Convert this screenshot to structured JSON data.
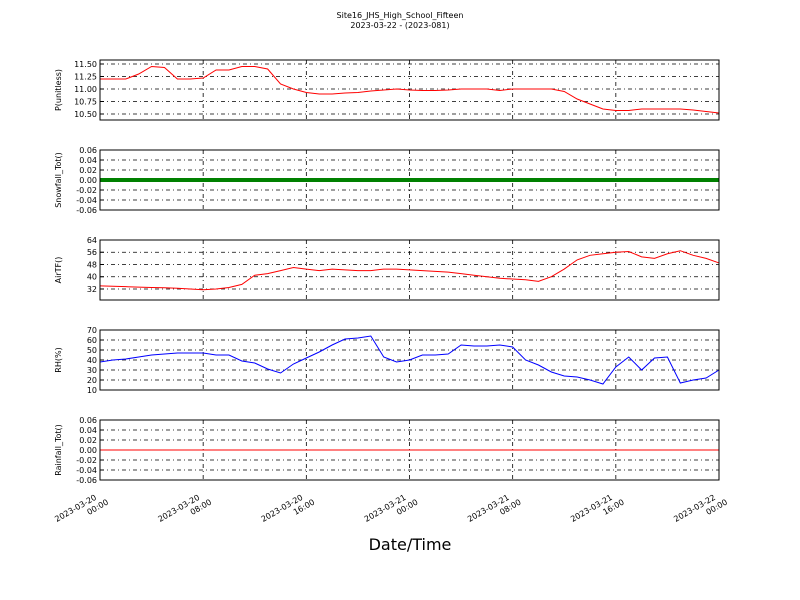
{
  "chart_data": {
    "title": "Site16_JHS_High_School_Fifteen",
    "subtitle": "2023-03-22 - (2023-081)",
    "xlabel": "Date/Time",
    "x": [
      "2023-03-20 00:00",
      "2023-03-20 01:00",
      "2023-03-20 02:00",
      "2023-03-20 03:00",
      "2023-03-20 04:00",
      "2023-03-20 05:00",
      "2023-03-20 06:00",
      "2023-03-20 07:00",
      "2023-03-20 08:00",
      "2023-03-20 09:00",
      "2023-03-20 10:00",
      "2023-03-20 11:00",
      "2023-03-20 12:00",
      "2023-03-20 13:00",
      "2023-03-20 14:00",
      "2023-03-20 15:00",
      "2023-03-20 16:00",
      "2023-03-20 17:00",
      "2023-03-20 18:00",
      "2023-03-20 19:00",
      "2023-03-20 20:00",
      "2023-03-20 21:00",
      "2023-03-20 22:00",
      "2023-03-20 23:00",
      "2023-03-21 00:00",
      "2023-03-21 01:00",
      "2023-03-21 02:00",
      "2023-03-21 03:00",
      "2023-03-21 04:00",
      "2023-03-21 05:00",
      "2023-03-21 06:00",
      "2023-03-21 07:00",
      "2023-03-21 08:00",
      "2023-03-21 09:00",
      "2023-03-21 10:00",
      "2023-03-21 11:00",
      "2023-03-21 12:00",
      "2023-03-21 13:00",
      "2023-03-21 14:00",
      "2023-03-21 15:00",
      "2023-03-21 16:00",
      "2023-03-21 17:00",
      "2023-03-21 18:00",
      "2023-03-21 19:00",
      "2023-03-21 20:00",
      "2023-03-21 21:00",
      "2023-03-21 22:00",
      "2023-03-21 23:00",
      "2023-03-22 00:00"
    ],
    "xlim": [
      "2023-03-20 00:00",
      "2023-03-22 00:00"
    ],
    "xticks": [
      "2023-03-20 00:00",
      "2023-03-20 08:00",
      "2023-03-20 16:00",
      "2023-03-21 00:00",
      "2023-03-21 08:00",
      "2023-03-21 16:00",
      "2023-03-22 00:00"
    ],
    "grid": true,
    "panels": [
      {
        "type": "line",
        "ylabel": "P(unitless)",
        "ylim": [
          10.38,
          11.58
        ],
        "yticks": [
          {
            "value": 10.5,
            "label": "10.50"
          },
          {
            "value": 10.75,
            "label": "10.75"
          },
          {
            "value": 11,
            "label": "11.00"
          },
          {
            "value": 11.25,
            "label": "11.25"
          },
          {
            "value": 11.5,
            "label": "11.50"
          }
        ],
        "series": [
          {
            "color": "#ff0000",
            "width": 1,
            "values": [
              11.2,
              11.2,
              11.2,
              11.3,
              11.45,
              11.43,
              11.2,
              11.2,
              11.22,
              11.38,
              11.38,
              11.45,
              11.45,
              11.4,
              11.1,
              11.0,
              10.93,
              10.9,
              10.9,
              10.92,
              10.93,
              10.96,
              10.98,
              11.0,
              10.98,
              10.97,
              10.97,
              10.98,
              11.0,
              11.0,
              11.0,
              10.97,
              11.0,
              11.0,
              11.0,
              11.0,
              10.95,
              10.8,
              10.7,
              10.6,
              10.57,
              10.57,
              10.6,
              10.6,
              10.6,
              10.6,
              10.58,
              10.55,
              10.52
            ]
          }
        ]
      },
      {
        "type": "line",
        "ylabel": "Snowfall_Tot()",
        "ylim": [
          -0.06,
          0.06
        ],
        "yticks": [
          -0.06,
          -0.04,
          -0.02,
          {
            "value": 0,
            "label": "0.00"
          },
          0.02,
          0.04,
          0.06
        ],
        "series": [
          {
            "color": "#008000",
            "width": 4,
            "values": [
              0,
              0,
              0,
              0,
              0,
              0,
              0,
              0,
              0,
              0,
              0,
              0,
              0,
              0,
              0,
              0,
              0,
              0,
              0,
              0,
              0,
              0,
              0,
              0,
              0,
              0,
              0,
              0,
              0,
              0,
              0,
              0,
              0,
              0,
              0,
              0,
              0,
              0,
              0,
              0,
              0,
              0,
              0,
              0,
              0,
              0,
              0,
              0,
              0
            ]
          }
        ]
      },
      {
        "type": "line",
        "ylabel": "AirTF()",
        "ylim": [
          24.8,
          64
        ],
        "yticks": [
          32,
          40,
          48,
          56,
          64
        ],
        "series": [
          {
            "color": "#ff0000",
            "width": 1,
            "values": [
              34,
              33.8,
              33.5,
              33.2,
              33,
              32.8,
              32.5,
              32,
              31.5,
              32,
              33,
              35,
              41,
              42,
              44,
              46,
              45,
              44,
              45,
              44.5,
              44,
              44,
              45,
              45,
              44.5,
              44,
              43.5,
              43,
              42,
              41,
              40,
              39,
              38.5,
              38,
              37,
              40,
              45,
              51,
              54,
              55,
              56,
              56.5,
              53,
              52,
              55,
              57,
              54,
              52,
              49
            ]
          }
        ]
      },
      {
        "type": "line",
        "ylabel": "RH(%)",
        "ylim": [
          10,
          70
        ],
        "yticks": [
          10,
          20,
          30,
          40,
          50,
          60,
          70
        ],
        "series": [
          {
            "color": "#0000ff",
            "width": 1,
            "values": [
              38,
              40,
              41,
              43,
              45,
              46,
              47,
              47,
              47,
              45,
              45,
              39,
              37,
              31,
              27,
              36,
              42,
              48,
              55,
              61,
              62,
              64,
              43,
              38,
              40,
              45,
              45,
              46,
              55,
              54,
              54,
              55,
              53,
              40,
              35,
              28,
              24,
              23,
              20,
              16,
              33,
              43,
              30,
              42,
              43,
              17,
              20,
              22,
              30
            ]
          }
        ]
      },
      {
        "type": "line",
        "ylabel": "Rainfall_Tot()",
        "ylim": [
          -0.06,
          0.06
        ],
        "yticks": [
          -0.06,
          -0.04,
          -0.02,
          {
            "value": 0,
            "label": "0.00"
          },
          0.02,
          0.04,
          0.06
        ],
        "series": [
          {
            "color": "#ff0000",
            "width": 1,
            "values": [
              0,
              0,
              0,
              0,
              0,
              0,
              0,
              0,
              0,
              0,
              0,
              0,
              0,
              0,
              0,
              0,
              0,
              0,
              0,
              0,
              0,
              0,
              0,
              0,
              0,
              0,
              0,
              0,
              0,
              0,
              0,
              0,
              0,
              0,
              0,
              0,
              0,
              0,
              0,
              0,
              0,
              0,
              0,
              0,
              0,
              0,
              0,
              0,
              0
            ]
          }
        ]
      }
    ]
  }
}
